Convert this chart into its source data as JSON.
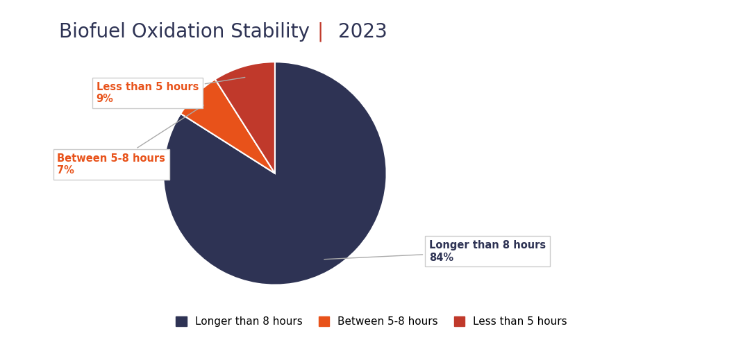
{
  "title_part1": "Biofuel Oxidation Stability ",
  "title_pipe": "|",
  "title_part2": " 2023",
  "title_color_main": "#2E3354",
  "title_color_pipe": "#C0392B",
  "slices": [
    84,
    7,
    9
  ],
  "labels": [
    "Longer than 8 hours",
    "Between 5-8 hours",
    "Less than 5 hours"
  ],
  "colors": [
    "#2E3354",
    "#E8521A",
    "#C0392B"
  ],
  "pct_labels": [
    "84%",
    "7%",
    "9%"
  ],
  "startangle": 90,
  "legend_labels": [
    "Longer than 8 hours",
    "Between 5-8 hours",
    "Less than 5 hours"
  ],
  "bg_color": "#FFFFFF",
  "annotation_text_color_dark": "#2E3354",
  "annotation_text_color_red": "#E8521A",
  "annotation_box_edge": "#CCCCCC"
}
